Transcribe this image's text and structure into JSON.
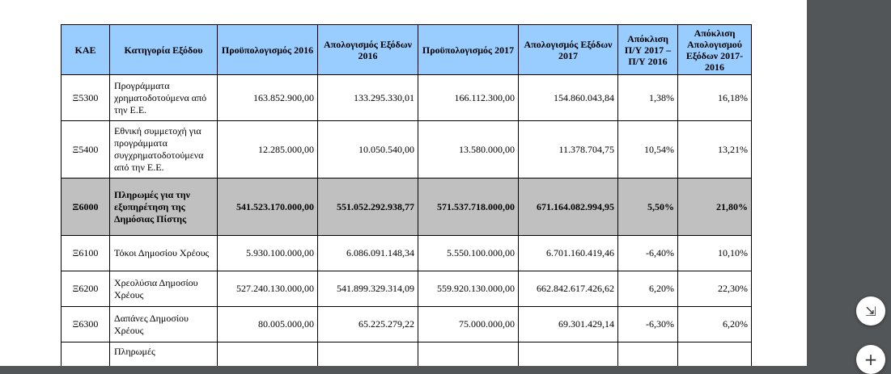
{
  "table": {
    "headers": [
      "ΚΑΕ",
      "Κατηγορία Εξόδου",
      "Προϋπολογισμός 2016",
      "Απολογισμός Εξόδων 2016",
      "Προϋπολογισμός 2017",
      "Απολογισμός Εξόδων 2017",
      "Απόκλιση Π/Υ 2017 – Π/Υ 2016",
      "Απόκλιση Απολογισμού Εξόδων 2017-2016"
    ],
    "rows": [
      {
        "code": "Ξ5300",
        "category": "Προγράμματα χρηματοδοτούμενα από την Ε.Ε.",
        "b2016": "163.852.900,00",
        "a2016": "133.295.330,01",
        "b2017": "166.112.300,00",
        "a2017": "154.860.043,84",
        "dev_b": "1,38%",
        "dev_a": "16,18%"
      },
      {
        "code": "Ξ5400",
        "category": "Εθνική συμμετοχή για προγράμματα συγχρηματοδοτούμενα από την Ε.Ε.",
        "b2016": "12.285.000,00",
        "a2016": "10.050.540,00",
        "b2017": "13.580.000,00",
        "a2017": "11.378.704,75",
        "dev_b": "10,54%",
        "dev_a": "13,21%"
      },
      {
        "code": "Ξ6000",
        "category": "Πληρωμές για την εξυπηρέτηση της Δημόσιας Πίστης",
        "b2016": "541.523.170.000,00",
        "a2016": "551.052.292.938,77",
        "b2017": "571.537.718.000,00",
        "a2017": "671.164.082.994,95",
        "dev_b": "5,50%",
        "dev_a": "21,80%"
      },
      {
        "code": "Ξ6100",
        "category": "Τόκοι Δημοσίου Χρέους",
        "b2016": "5.930.100.000,00",
        "a2016": "6.086.091.148,34",
        "b2017": "5.550.100.000,00",
        "a2017": "6.701.160.419,46",
        "dev_b": "-6,40%",
        "dev_a": "10,10%"
      },
      {
        "code": "Ξ6200",
        "category": "Χρεολύσια Δημοσίου Χρέους",
        "b2016": "527.240.130.000,00",
        "a2016": "541.899.329.314,09",
        "b2017": "559.920.130.000,00",
        "a2017": "662.842.617.426,62",
        "dev_b": "6,20%",
        "dev_a": "22,30%"
      },
      {
        "code": "Ξ6300",
        "category": "Δαπάνες Δημοσίου Χρέους",
        "b2016": "80.005.000,00",
        "a2016": "65.225.279,22",
        "b2017": "75.000.000,00",
        "a2017": "69.301.429,14",
        "dev_b": "-6,30%",
        "dev_a": "6,20%"
      },
      {
        "code": "",
        "category": "Πληρωμές",
        "b2016": "",
        "a2016": "",
        "b2017": "",
        "a2017": "",
        "dev_b": "",
        "dev_a": ""
      }
    ]
  },
  "viewer": {
    "fit_icon": "fit-page-icon",
    "fit_glyph": "⇲",
    "zoom_icon": "zoom-in-icon",
    "zoom_glyph": "+"
  }
}
